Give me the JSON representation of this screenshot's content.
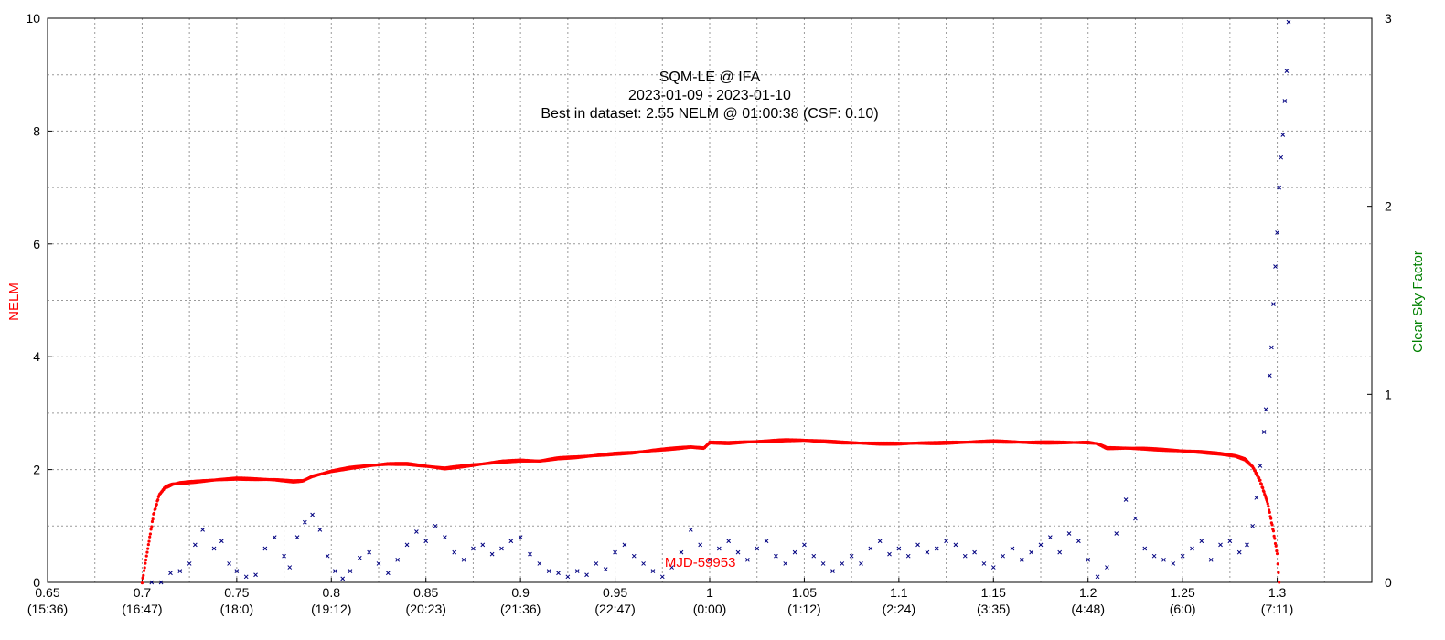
{
  "chart_data": {
    "type": "scatter",
    "title_lines": [
      "SQM-LE @ IFA",
      "2023-01-09 - 2023-01-10",
      "Best in dataset: 2.55 NELM @ 01:00:38 (CSF: 0.10)"
    ],
    "ylabel_left": "NELM",
    "ylabel_right": "Clear Sky Factor",
    "xlabel": "MJD-59953",
    "xlim": [
      0.65,
      1.35
    ],
    "ylim_left": [
      0,
      10
    ],
    "ylim_right": [
      0,
      3
    ],
    "grid": true,
    "x_ticks": [
      {
        "v": 0.65,
        "label": "0.65",
        "time": "(15:36)"
      },
      {
        "v": 0.7,
        "label": "0.7",
        "time": "(16:47)"
      },
      {
        "v": 0.75,
        "label": "0.75",
        "time": "(18:0)"
      },
      {
        "v": 0.8,
        "label": "0.8",
        "time": "(19:12)"
      },
      {
        "v": 0.85,
        "label": "0.85",
        "time": "(20:23)"
      },
      {
        "v": 0.9,
        "label": "0.9",
        "time": "(21:36)"
      },
      {
        "v": 0.95,
        "label": "0.95",
        "time": "(22:47)"
      },
      {
        "v": 1.0,
        "label": "1",
        "time": "(0:00)"
      },
      {
        "v": 1.05,
        "label": "1.05",
        "time": "(1:12)"
      },
      {
        "v": 1.1,
        "label": "1.1",
        "time": "(2:24)"
      },
      {
        "v": 1.15,
        "label": "1.15",
        "time": "(3:35)"
      },
      {
        "v": 1.2,
        "label": "1.2",
        "time": "(4:48)"
      },
      {
        "v": 1.25,
        "label": "1.25",
        "time": "(6:0)"
      },
      {
        "v": 1.3,
        "label": "1.3",
        "time": "(7:11)"
      }
    ],
    "y_ticks_left": [
      {
        "v": 0,
        "label": "0"
      },
      {
        "v": 2,
        "label": "2"
      },
      {
        "v": 4,
        "label": "4"
      },
      {
        "v": 6,
        "label": "6"
      },
      {
        "v": 8,
        "label": "8"
      },
      {
        "v": 10,
        "label": "10"
      }
    ],
    "y_ticks_right": [
      {
        "v": 0,
        "label": "0"
      },
      {
        "v": 1,
        "label": "1"
      },
      {
        "v": 2,
        "label": "2"
      },
      {
        "v": 3,
        "label": "3"
      }
    ],
    "series": [
      {
        "name": "NELM",
        "axis": "left",
        "color": "#ff0000",
        "marker": "dot",
        "points": [
          [
            0.7,
            0.0
          ],
          [
            0.703,
            0.6
          ],
          [
            0.706,
            1.2
          ],
          [
            0.709,
            1.55
          ],
          [
            0.712,
            1.68
          ],
          [
            0.716,
            1.74
          ],
          [
            0.72,
            1.76
          ],
          [
            0.73,
            1.79
          ],
          [
            0.74,
            1.82
          ],
          [
            0.75,
            1.84
          ],
          [
            0.76,
            1.83
          ],
          [
            0.77,
            1.82
          ],
          [
            0.78,
            1.79
          ],
          [
            0.785,
            1.8
          ],
          [
            0.79,
            1.88
          ],
          [
            0.8,
            1.97
          ],
          [
            0.81,
            2.03
          ],
          [
            0.82,
            2.07
          ],
          [
            0.83,
            2.1
          ],
          [
            0.84,
            2.1
          ],
          [
            0.85,
            2.06
          ],
          [
            0.86,
            2.02
          ],
          [
            0.87,
            2.06
          ],
          [
            0.88,
            2.1
          ],
          [
            0.89,
            2.14
          ],
          [
            0.9,
            2.16
          ],
          [
            0.91,
            2.15
          ],
          [
            0.92,
            2.2
          ],
          [
            0.93,
            2.22
          ],
          [
            0.94,
            2.25
          ],
          [
            0.95,
            2.28
          ],
          [
            0.96,
            2.3
          ],
          [
            0.97,
            2.34
          ],
          [
            0.98,
            2.37
          ],
          [
            0.99,
            2.4
          ],
          [
            0.997,
            2.38
          ],
          [
            1.0,
            2.48
          ],
          [
            1.01,
            2.47
          ],
          [
            1.02,
            2.49
          ],
          [
            1.03,
            2.5
          ],
          [
            1.04,
            2.52
          ],
          [
            1.05,
            2.52
          ],
          [
            1.06,
            2.5
          ],
          [
            1.07,
            2.48
          ],
          [
            1.08,
            2.47
          ],
          [
            1.09,
            2.46
          ],
          [
            1.1,
            2.46
          ],
          [
            1.11,
            2.47
          ],
          [
            1.12,
            2.47
          ],
          [
            1.13,
            2.48
          ],
          [
            1.14,
            2.49
          ],
          [
            1.15,
            2.5
          ],
          [
            1.16,
            2.49
          ],
          [
            1.17,
            2.48
          ],
          [
            1.18,
            2.48
          ],
          [
            1.19,
            2.48
          ],
          [
            1.2,
            2.48
          ],
          [
            1.205,
            2.46
          ],
          [
            1.21,
            2.38
          ],
          [
            1.22,
            2.38
          ],
          [
            1.23,
            2.37
          ],
          [
            1.24,
            2.35
          ],
          [
            1.25,
            2.33
          ],
          [
            1.26,
            2.31
          ],
          [
            1.27,
            2.28
          ],
          [
            1.278,
            2.24
          ],
          [
            1.283,
            2.18
          ],
          [
            1.287,
            2.05
          ],
          [
            1.291,
            1.8
          ],
          [
            1.295,
            1.4
          ],
          [
            1.298,
            0.9
          ],
          [
            1.3,
            0.5
          ],
          [
            1.301,
            0.0
          ]
        ]
      },
      {
        "name": "Clear Sky Factor",
        "axis": "right",
        "color": "#000080",
        "marker": "x",
        "points": [
          [
            0.705,
            0.0
          ],
          [
            0.71,
            0.0
          ],
          [
            0.715,
            0.05
          ],
          [
            0.72,
            0.06
          ],
          [
            0.725,
            0.1
          ],
          [
            0.728,
            0.2
          ],
          [
            0.732,
            0.28
          ],
          [
            0.738,
            0.18
          ],
          [
            0.742,
            0.22
          ],
          [
            0.746,
            0.1
          ],
          [
            0.75,
            0.06
          ],
          [
            0.755,
            0.03
          ],
          [
            0.76,
            0.04
          ],
          [
            0.765,
            0.18
          ],
          [
            0.77,
            0.24
          ],
          [
            0.775,
            0.14
          ],
          [
            0.778,
            0.08
          ],
          [
            0.782,
            0.24
          ],
          [
            0.786,
            0.32
          ],
          [
            0.79,
            0.36
          ],
          [
            0.794,
            0.28
          ],
          [
            0.798,
            0.14
          ],
          [
            0.802,
            0.06
          ],
          [
            0.806,
            0.02
          ],
          [
            0.81,
            0.06
          ],
          [
            0.815,
            0.13
          ],
          [
            0.82,
            0.16
          ],
          [
            0.825,
            0.1
          ],
          [
            0.83,
            0.05
          ],
          [
            0.835,
            0.12
          ],
          [
            0.84,
            0.2
          ],
          [
            0.845,
            0.27
          ],
          [
            0.85,
            0.22
          ],
          [
            0.855,
            0.3
          ],
          [
            0.86,
            0.24
          ],
          [
            0.865,
            0.16
          ],
          [
            0.87,
            0.12
          ],
          [
            0.875,
            0.18
          ],
          [
            0.88,
            0.2
          ],
          [
            0.885,
            0.15
          ],
          [
            0.89,
            0.18
          ],
          [
            0.895,
            0.22
          ],
          [
            0.9,
            0.24
          ],
          [
            0.905,
            0.15
          ],
          [
            0.91,
            0.1
          ],
          [
            0.915,
            0.06
          ],
          [
            0.92,
            0.05
          ],
          [
            0.925,
            0.03
          ],
          [
            0.93,
            0.06
          ],
          [
            0.935,
            0.04
          ],
          [
            0.94,
            0.1
          ],
          [
            0.945,
            0.07
          ],
          [
            0.95,
            0.16
          ],
          [
            0.955,
            0.2
          ],
          [
            0.96,
            0.14
          ],
          [
            0.965,
            0.1
          ],
          [
            0.97,
            0.06
          ],
          [
            0.975,
            0.03
          ],
          [
            0.98,
            0.08
          ],
          [
            0.985,
            0.16
          ],
          [
            0.99,
            0.28
          ],
          [
            0.995,
            0.2
          ],
          [
            1.0,
            0.12
          ],
          [
            1.005,
            0.18
          ],
          [
            1.01,
            0.22
          ],
          [
            1.015,
            0.16
          ],
          [
            1.02,
            0.12
          ],
          [
            1.025,
            0.18
          ],
          [
            1.03,
            0.22
          ],
          [
            1.035,
            0.14
          ],
          [
            1.04,
            0.1
          ],
          [
            1.045,
            0.16
          ],
          [
            1.05,
            0.2
          ],
          [
            1.055,
            0.14
          ],
          [
            1.06,
            0.1
          ],
          [
            1.065,
            0.06
          ],
          [
            1.07,
            0.1
          ],
          [
            1.075,
            0.14
          ],
          [
            1.08,
            0.1
          ],
          [
            1.085,
            0.18
          ],
          [
            1.09,
            0.22
          ],
          [
            1.095,
            0.15
          ],
          [
            1.1,
            0.18
          ],
          [
            1.105,
            0.14
          ],
          [
            1.11,
            0.2
          ],
          [
            1.115,
            0.16
          ],
          [
            1.12,
            0.18
          ],
          [
            1.125,
            0.22
          ],
          [
            1.13,
            0.2
          ],
          [
            1.135,
            0.14
          ],
          [
            1.14,
            0.16
          ],
          [
            1.145,
            0.1
          ],
          [
            1.15,
            0.08
          ],
          [
            1.155,
            0.14
          ],
          [
            1.16,
            0.18
          ],
          [
            1.165,
            0.12
          ],
          [
            1.17,
            0.16
          ],
          [
            1.175,
            0.2
          ],
          [
            1.18,
            0.24
          ],
          [
            1.185,
            0.16
          ],
          [
            1.19,
            0.26
          ],
          [
            1.195,
            0.22
          ],
          [
            1.2,
            0.12
          ],
          [
            1.205,
            0.03
          ],
          [
            1.21,
            0.08
          ],
          [
            1.215,
            0.26
          ],
          [
            1.22,
            0.44
          ],
          [
            1.225,
            0.34
          ],
          [
            1.23,
            0.18
          ],
          [
            1.235,
            0.14
          ],
          [
            1.24,
            0.12
          ],
          [
            1.245,
            0.1
          ],
          [
            1.25,
            0.14
          ],
          [
            1.255,
            0.18
          ],
          [
            1.26,
            0.22
          ],
          [
            1.265,
            0.12
          ],
          [
            1.27,
            0.2
          ],
          [
            1.275,
            0.22
          ],
          [
            1.28,
            0.16
          ],
          [
            1.284,
            0.2
          ],
          [
            1.287,
            0.3
          ],
          [
            1.289,
            0.45
          ],
          [
            1.291,
            0.62
          ],
          [
            1.293,
            0.8
          ],
          [
            1.294,
            0.92
          ],
          [
            1.296,
            1.1
          ],
          [
            1.297,
            1.25
          ],
          [
            1.298,
            1.48
          ],
          [
            1.299,
            1.68
          ],
          [
            1.3,
            1.86
          ],
          [
            1.301,
            2.1
          ],
          [
            1.302,
            2.26
          ],
          [
            1.303,
            2.38
          ],
          [
            1.304,
            2.56
          ],
          [
            1.305,
            2.72
          ],
          [
            1.306,
            2.98
          ]
        ]
      }
    ]
  }
}
